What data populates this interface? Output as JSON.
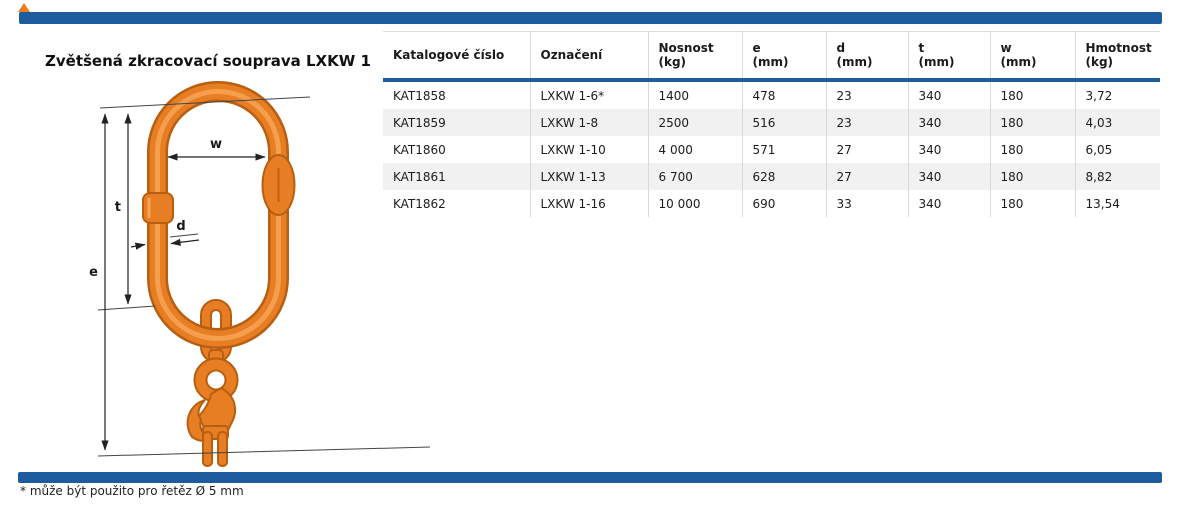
{
  "page": {
    "title": "Zvětšená zkracovací souprava LXKW 1",
    "footnote": "* může být použito pro řetěz Ø 5 mm"
  },
  "colors": {
    "bar_blue": "#1f5c9e",
    "link_orange": "#e87e24",
    "link_orange_dark": "#b85e10",
    "row_stripe": "#f1f1f1"
  },
  "diagram": {
    "description": "master-link-with-shortening-hook",
    "labels": {
      "w": "w",
      "t": "t",
      "d": "d",
      "e": "e"
    }
  },
  "table": {
    "headers": [
      {
        "line1": "Katalogové číslo",
        "line2": ""
      },
      {
        "line1": "Označení",
        "line2": ""
      },
      {
        "line1": "Nosnost",
        "line2": "(kg)"
      },
      {
        "line1": "e",
        "line2": "(mm)"
      },
      {
        "line1": "d",
        "line2": "(mm)"
      },
      {
        "line1": "t",
        "line2": "(mm)"
      },
      {
        "line1": "w",
        "line2": "(mm)"
      },
      {
        "line1": "Hmotnost",
        "line2": "(kg)"
      }
    ],
    "rows": [
      [
        "KAT1858",
        "LXKW 1-6*",
        "1400",
        "478",
        "23",
        "340",
        "180",
        "3,72"
      ],
      [
        "KAT1859",
        "LXKW 1-8",
        "2500",
        "516",
        "23",
        "340",
        "180",
        "4,03"
      ],
      [
        "KAT1860",
        "LXKW 1-10",
        "4 000",
        "571",
        "27",
        "340",
        "180",
        "6,05"
      ],
      [
        "KAT1861",
        "LXKW 1-13",
        "6 700",
        "628",
        "27",
        "340",
        "180",
        "8,82"
      ],
      [
        "KAT1862",
        "LXKW 1-16",
        "10 000",
        "690",
        "33",
        "340",
        "180",
        "13,54"
      ]
    ]
  }
}
